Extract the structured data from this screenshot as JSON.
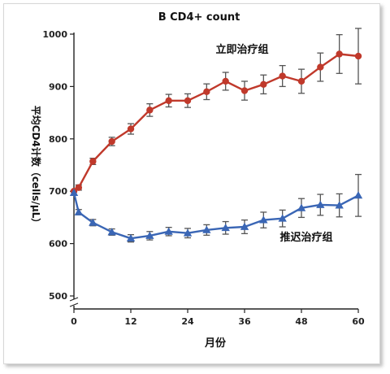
{
  "chart_data": {
    "type": "line",
    "title": "B  CD4+ count",
    "xlabel": "月份",
    "ylabel": "平均CD4计数（cells/μL）",
    "x_ticks": [
      "0",
      "12",
      "24",
      "36",
      "48",
      "60"
    ],
    "y_ticks": [
      "500",
      "600",
      "700",
      "800",
      "900",
      "1000"
    ],
    "xlim": [
      0,
      60
    ],
    "ylim": [
      490,
      1000
    ],
    "axis_break": "y",
    "grid": false,
    "series": [
      {
        "name": "立即治疗组",
        "color": "#c0392b",
        "marker": "circle",
        "x": [
          0,
          1,
          4,
          8,
          12,
          16,
          20,
          24,
          28,
          32,
          36,
          40,
          44,
          48,
          52,
          56,
          60
        ],
        "y": [
          700,
          707,
          757,
          795,
          819,
          855,
          873,
          873,
          890,
          910,
          892,
          904,
          920,
          910,
          937,
          962,
          958
        ],
        "error": [
          0,
          5,
          6,
          8,
          10,
          12,
          12,
          13,
          15,
          17,
          18,
          18,
          20,
          23,
          27,
          37,
          53
        ]
      },
      {
        "name": "推迟治疗组",
        "color": "#3a66b5",
        "marker": "triangle",
        "x": [
          0,
          1,
          4,
          8,
          12,
          16,
          20,
          24,
          28,
          32,
          36,
          40,
          44,
          48,
          52,
          56,
          60
        ],
        "y": [
          697,
          660,
          640,
          622,
          610,
          615,
          623,
          620,
          626,
          630,
          632,
          645,
          648,
          668,
          674,
          673,
          692
        ],
        "error": [
          0,
          5,
          6,
          6,
          7,
          8,
          8,
          9,
          10,
          12,
          13,
          15,
          16,
          18,
          20,
          22,
          40
        ]
      }
    ]
  }
}
